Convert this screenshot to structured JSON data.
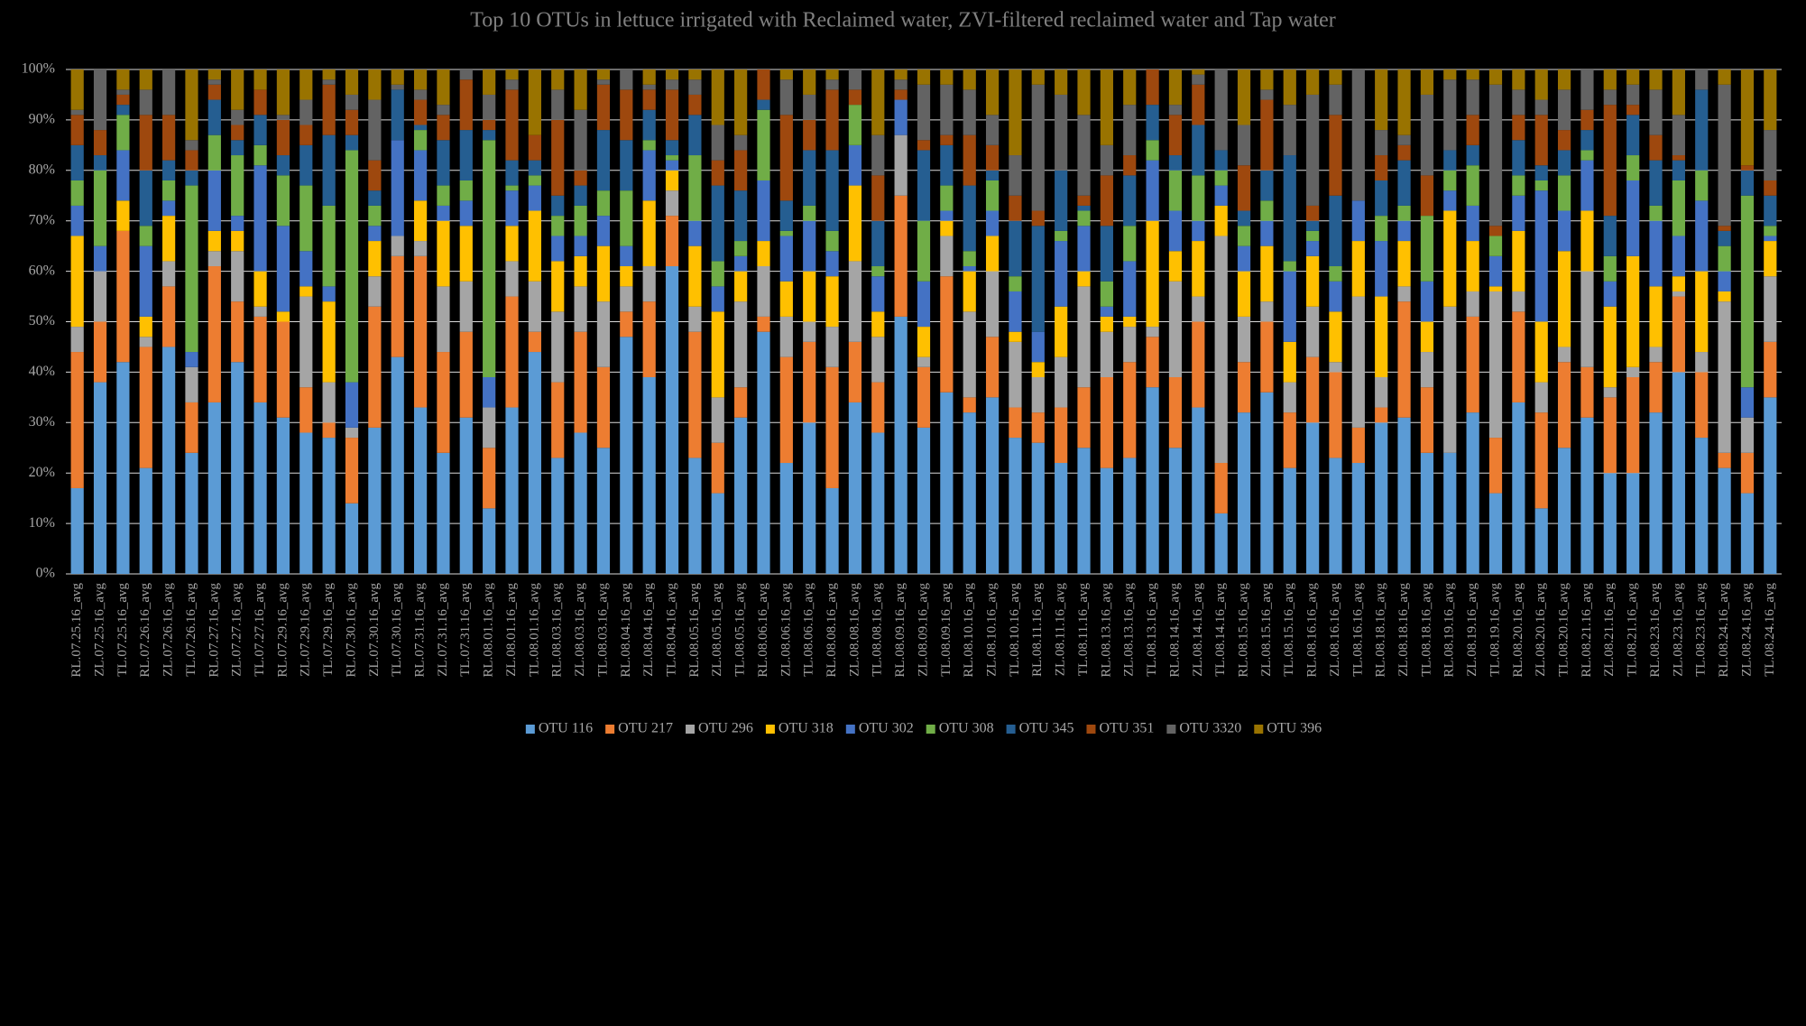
{
  "chart_data": {
    "type": "stacked_bar",
    "title": "Top 10 OTUs in lettuce irrigated with Reclaimed water, ZVI-filtered reclaimed water and Tap water",
    "categories": [
      "RL.07.25.16_avg",
      "ZL.07.25.16_avg",
      "TL.07.25.16_avg",
      "RL.07.26.16_avg",
      "ZL.07.26.16_avg",
      "TL.07.26.16_avg",
      "RL.07.27.16_avg",
      "ZL.07.27.16_avg",
      "TL.07.27.16_avg",
      "RL.07.29.16_avg",
      "ZL.07.29.16_avg",
      "TL.07.29.16_avg",
      "RL.07.30.16_avg",
      "ZL.07.30.16_avg",
      "TL.07.30.16_avg",
      "RL.07.31.16_avg",
      "ZL.07.31.16_avg",
      "TL.07.31.16_avg",
      "RL.08.01.16_avg",
      "ZL.08.01.16_avg",
      "TL.08.01.16_avg",
      "RL.08.03.16_avg",
      "ZL.08.03.16_avg",
      "TL.08.03.16_avg",
      "RL.08.04.16_avg",
      "ZL.08.04.16_avg",
      "TL.08.04.16_avg",
      "RL.08.05.16_avg",
      "ZL.08.05.16_avg",
      "TL.08.05.16_avg",
      "RL.08.06.16_avg",
      "ZL.08.06.16_avg",
      "TL.08.06.16_avg",
      "RL.08.08.16_avg",
      "ZL.08.08.16_avg",
      "TL.08.08.16_avg",
      "RL.08.09.16_avg",
      "ZL.08.09.16_avg",
      "TL.08.09.16_avg",
      "RL.08.10.16_avg",
      "ZL.08.10.16_avg",
      "TL.08.10.16_avg",
      "RL.08.11.16_avg",
      "ZL.08.11.16_avg",
      "TL.08.11.16_avg",
      "RL.08.13.16_avg",
      "ZL.08.13.16_avg",
      "TL.08.13.16_avg",
      "RL.08.14.16_avg",
      "ZL.08.14.16_avg",
      "TL.08.14.16_avg",
      "RL.08.15.16_avg",
      "ZL.08.15.16_avg",
      "TL.08.15.16_avg",
      "RL.08.16.16_avg",
      "ZL.08.16.16_avg",
      "TL.08.16.16_avg",
      "RL.08.18.16_avg",
      "ZL.08.18.16_avg",
      "TL.08.18.16_avg",
      "RL.08.19.16_avg",
      "ZL.08.19.16_avg",
      "TL.08.19.16_avg",
      "RL.08.20.16_avg",
      "ZL.08.20.16_avg",
      "TL.08.20.16_avg",
      "RL.08.21.16_avg",
      "ZL.08.21.16_avg",
      "TL.08.21.16_avg",
      "RL.08.23.16_avg",
      "ZL.08.23.16_avg",
      "TL.08.23.16_avg",
      "RL.08.24.16_avg",
      "ZL.08.24.16_avg",
      "TL.08.24.16_avg"
    ],
    "series": [
      {
        "name": "OTU 116",
        "color": "#5b9bd5",
        "values": [
          17,
          38,
          42,
          21,
          45,
          24,
          34,
          42,
          34,
          31,
          28,
          27,
          14,
          29,
          43,
          33,
          24,
          31,
          13,
          33,
          44,
          23,
          28,
          25,
          47,
          39,
          61,
          23,
          16,
          31,
          48,
          22,
          30,
          17,
          34,
          28,
          51,
          29,
          36,
          32,
          35,
          27,
          26,
          22,
          25,
          21,
          23,
          37,
          25,
          33,
          12,
          32,
          36,
          21,
          30,
          23,
          22,
          30,
          31,
          24,
          24,
          32,
          16,
          34,
          13,
          25,
          31,
          20,
          20,
          32,
          40,
          27,
          21,
          16,
          35
        ]
      },
      {
        "name": "OTU 217",
        "color": "#ed7d31",
        "values": [
          27,
          12,
          26,
          24,
          12,
          10,
          27,
          12,
          17,
          19,
          9,
          3,
          13,
          24,
          20,
          30,
          20,
          17,
          12,
          22,
          4,
          15,
          20,
          16,
          5,
          15,
          10,
          25,
          10,
          6,
          3,
          21,
          16,
          24,
          12,
          10,
          24,
          12,
          23,
          3,
          12,
          6,
          6,
          11,
          12,
          18,
          19,
          10,
          14,
          17,
          10,
          10,
          14,
          11,
          13,
          17,
          7,
          3,
          23,
          13,
          0,
          19,
          11,
          18,
          19,
          17,
          10,
          15,
          19,
          10,
          15,
          13,
          3,
          8,
          11
        ]
      },
      {
        "name": "OTU 296",
        "color": "#a5a5a5",
        "values": [
          5,
          10,
          0,
          2,
          5,
          7,
          3,
          10,
          2,
          0,
          18,
          8,
          2,
          6,
          4,
          3,
          13,
          10,
          8,
          7,
          10,
          14,
          9,
          13,
          5,
          7,
          5,
          5,
          9,
          17,
          10,
          8,
          4,
          8,
          16,
          9,
          12,
          2,
          8,
          17,
          13,
          13,
          7,
          10,
          20,
          9,
          7,
          2,
          19,
          5,
          45,
          9,
          4,
          6,
          10,
          2,
          26,
          6,
          3,
          7,
          29,
          5,
          29,
          4,
          6,
          3,
          19,
          2,
          2,
          3,
          1,
          4,
          30,
          7,
          13
        ]
      },
      {
        "name": "OTU 318",
        "color": "#ffc000",
        "values": [
          18,
          0,
          6,
          4,
          9,
          0,
          4,
          4,
          7,
          2,
          2,
          16,
          0,
          7,
          0,
          8,
          13,
          11,
          0,
          7,
          14,
          10,
          6,
          11,
          4,
          13,
          4,
          12,
          17,
          6,
          5,
          7,
          10,
          10,
          15,
          5,
          0,
          6,
          3,
          8,
          7,
          2,
          3,
          10,
          3,
          3,
          2,
          21,
          6,
          11,
          6,
          9,
          11,
          8,
          10,
          10,
          11,
          16,
          9,
          6,
          19,
          10,
          1,
          12,
          12,
          19,
          12,
          16,
          22,
          12,
          3,
          16,
          2,
          0,
          7
        ]
      },
      {
        "name": "OTU 302",
        "color": "#4472c4",
        "values": [
          6,
          5,
          10,
          14,
          3,
          3,
          12,
          3,
          21,
          17,
          7,
          3,
          9,
          3,
          19,
          10,
          3,
          5,
          6,
          7,
          5,
          5,
          4,
          6,
          4,
          10,
          2,
          5,
          5,
          3,
          12,
          9,
          10,
          5,
          8,
          7,
          7,
          9,
          2,
          1,
          5,
          8,
          6,
          13,
          9,
          2,
          11,
          12,
          8,
          4,
          4,
          5,
          5,
          14,
          3,
          6,
          8,
          11,
          4,
          8,
          4,
          7,
          6,
          7,
          26,
          8,
          10,
          5,
          15,
          13,
          8,
          14,
          4,
          6,
          1
        ]
      },
      {
        "name": "OTU 308",
        "color": "#70ad47",
        "values": [
          5,
          15,
          7,
          4,
          4,
          33,
          7,
          12,
          4,
          10,
          13,
          16,
          46,
          4,
          0,
          4,
          4,
          4,
          47,
          1,
          2,
          4,
          6,
          5,
          11,
          2,
          1,
          13,
          5,
          3,
          14,
          1,
          3,
          4,
          8,
          2,
          0,
          12,
          5,
          3,
          6,
          3,
          0,
          2,
          3,
          5,
          7,
          4,
          8,
          9,
          3,
          4,
          4,
          2,
          2,
          3,
          0,
          5,
          3,
          13,
          4,
          8,
          4,
          4,
          2,
          7,
          2,
          5,
          5,
          3,
          11,
          6,
          5,
          38,
          2
        ]
      },
      {
        "name": "OTU 345",
        "color": "#255e91",
        "values": [
          7,
          3,
          2,
          11,
          4,
          3,
          7,
          3,
          6,
          4,
          8,
          14,
          3,
          3,
          10,
          1,
          9,
          10,
          2,
          5,
          3,
          4,
          4,
          12,
          10,
          6,
          3,
          8,
          15,
          10,
          2,
          6,
          11,
          16,
          0,
          9,
          0,
          14,
          8,
          13,
          2,
          11,
          21,
          12,
          1,
          11,
          10,
          7,
          3,
          10,
          4,
          3,
          6,
          21,
          2,
          14,
          0,
          7,
          9,
          0,
          4,
          4,
          0,
          7,
          3,
          5,
          4,
          8,
          8,
          9,
          4,
          16,
          3,
          5,
          6
        ]
      },
      {
        "name": "OTU 351",
        "color": "#9e480e",
        "values": [
          6,
          5,
          2,
          11,
          9,
          4,
          3,
          3,
          5,
          7,
          4,
          10,
          5,
          6,
          0,
          5,
          5,
          10,
          2,
          14,
          5,
          15,
          3,
          9,
          10,
          4,
          10,
          4,
          5,
          8,
          6,
          17,
          6,
          12,
          3,
          9,
          2,
          2,
          2,
          10,
          5,
          5,
          3,
          0,
          2,
          10,
          4,
          7,
          8,
          8,
          0,
          9,
          14,
          0,
          3,
          16,
          0,
          5,
          3,
          8,
          0,
          6,
          2,
          5,
          10,
          4,
          4,
          22,
          2,
          5,
          1,
          0,
          1,
          1,
          3
        ]
      },
      {
        "name": "OTU 3320",
        "color": "#636363",
        "values": [
          1,
          12,
          1,
          5,
          9,
          2,
          1,
          3,
          0,
          1,
          5,
          1,
          3,
          12,
          1,
          2,
          2,
          2,
          5,
          2,
          0,
          6,
          12,
          1,
          4,
          1,
          2,
          3,
          7,
          3,
          0,
          7,
          5,
          2,
          4,
          8,
          2,
          11,
          10,
          9,
          6,
          8,
          25,
          15,
          16,
          6,
          10,
          0,
          2,
          2,
          16,
          8,
          2,
          10,
          22,
          6,
          26,
          5,
          2,
          16,
          14,
          7,
          28,
          5,
          3,
          8,
          8,
          3,
          4,
          9,
          8,
          4,
          28,
          0,
          10
        ]
      },
      {
        "name": "OTU 396",
        "color": "#997300",
        "values": [
          8,
          0,
          4,
          4,
          0,
          14,
          2,
          8,
          4,
          9,
          6,
          2,
          5,
          6,
          3,
          4,
          7,
          0,
          5,
          2,
          13,
          4,
          8,
          2,
          0,
          3,
          2,
          2,
          11,
          13,
          0,
          2,
          5,
          2,
          0,
          13,
          2,
          3,
          3,
          4,
          9,
          17,
          3,
          5,
          9,
          15,
          7,
          0,
          7,
          1,
          0,
          11,
          4,
          7,
          5,
          3,
          0,
          12,
          13,
          5,
          2,
          2,
          3,
          4,
          6,
          4,
          0,
          4,
          3,
          4,
          9,
          0,
          3,
          19,
          12
        ]
      }
    ],
    "ylim": [
      0,
      100
    ],
    "yticks": [
      {
        "value": 0,
        "label": "0%"
      },
      {
        "value": 10,
        "label": "10%"
      },
      {
        "value": 20,
        "label": "20%"
      },
      {
        "value": 30,
        "label": "30%"
      },
      {
        "value": 40,
        "label": "40%"
      },
      {
        "value": 50,
        "label": "50%"
      },
      {
        "value": 60,
        "label": "60%"
      },
      {
        "value": 70,
        "label": "70%"
      },
      {
        "value": 80,
        "label": "80%"
      },
      {
        "value": 90,
        "label": "90%"
      },
      {
        "value": 100,
        "label": "100%"
      }
    ],
    "grid": true,
    "legend": "bottom"
  }
}
